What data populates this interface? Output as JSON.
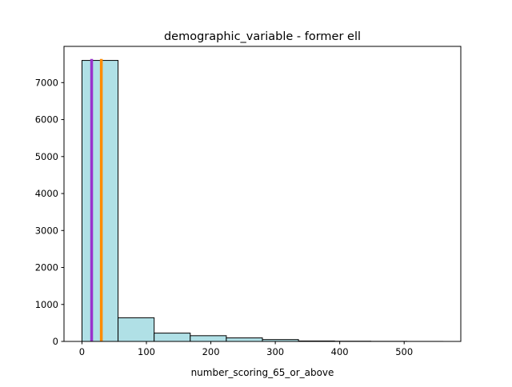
{
  "chart_data": {
    "type": "bar",
    "title": "demographic_variable - former ell",
    "xlabel": "number_scoring_65_or_above",
    "ylabel": "",
    "xlim": [
      -27.9,
      587.9
    ],
    "ylim": [
      0,
      7980
    ],
    "x_ticks": [
      {
        "value": 0,
        "label": "0"
      },
      {
        "value": 100,
        "label": "100"
      },
      {
        "value": 200,
        "label": "200"
      },
      {
        "value": 300,
        "label": "300"
      },
      {
        "value": 400,
        "label": "400"
      },
      {
        "value": 500,
        "label": "500"
      }
    ],
    "y_ticks": [
      {
        "value": 0,
        "label": "0"
      },
      {
        "value": 1000,
        "label": "1000"
      },
      {
        "value": 2000,
        "label": "2000"
      },
      {
        "value": 3000,
        "label": "3000"
      },
      {
        "value": 4000,
        "label": "4000"
      },
      {
        "value": 5000,
        "label": "5000"
      },
      {
        "value": 6000,
        "label": "6000"
      },
      {
        "value": 7000,
        "label": "7000"
      }
    ],
    "bins": [
      {
        "start": 0,
        "end": 56,
        "count": 7600
      },
      {
        "start": 56,
        "end": 112,
        "count": 640
      },
      {
        "start": 112,
        "end": 168,
        "count": 225
      },
      {
        "start": 168,
        "end": 224,
        "count": 155
      },
      {
        "start": 224,
        "end": 280,
        "count": 95
      },
      {
        "start": 280,
        "end": 336,
        "count": 50
      },
      {
        "start": 336,
        "end": 392,
        "count": 12
      },
      {
        "start": 392,
        "end": 448,
        "count": 6
      },
      {
        "start": 448,
        "end": 504,
        "count": 3
      },
      {
        "start": 504,
        "end": 560,
        "count": 1
      }
    ],
    "vlines": [
      {
        "x": 15,
        "y_top": 7640,
        "color": "#9932cc"
      },
      {
        "x": 30,
        "y_top": 7640,
        "color": "#ff8c00"
      }
    ],
    "bar_color": "#b0e0e6",
    "edge_color": "#000000",
    "grid": false,
    "legend": "none"
  }
}
